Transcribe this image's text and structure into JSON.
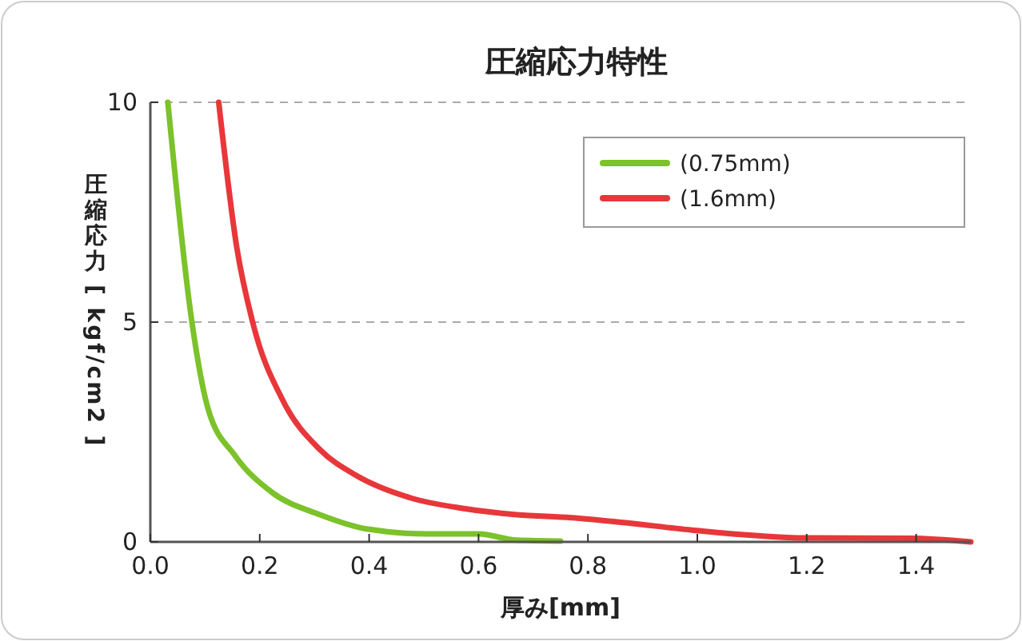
{
  "chart_data": {
    "type": "line",
    "title": "圧縮応力特性",
    "xlabel": "厚み[mm]",
    "ylabel": "圧縮応力 [ kgf/cm2 ]",
    "xlim": [
      0,
      1.5
    ],
    "xticks": [
      {
        "value": 0,
        "label": "0.0"
      },
      {
        "value": 0.2,
        "label": "0.2"
      },
      {
        "value": 0.4,
        "label": "0.4"
      },
      {
        "value": 0.6,
        "label": "0.6"
      },
      {
        "value": 0.8,
        "label": "0.8"
      },
      {
        "value": 1,
        "label": "1.0"
      },
      {
        "value": 1.2,
        "label": "1.2"
      },
      {
        "value": 1.4,
        "label": "1.4"
      }
    ],
    "ylim": [
      0,
      10
    ],
    "yticks": [
      0,
      5,
      10
    ],
    "grid": "y",
    "legend": "top right",
    "series": [
      {
        "name": "(0.75mm)",
        "color": "#7cc22a",
        "x": [
          0.032,
          0.076,
          0.105,
          0.155,
          0.222,
          0.31,
          0.398,
          0.506,
          0.6,
          0.67,
          0.75
        ],
        "values": [
          10,
          5,
          3.05,
          1.96,
          1.13,
          0.62,
          0.29,
          0.18,
          0.18,
          0.04,
          0.02
        ]
      },
      {
        "name": "(1.6mm)",
        "color": "#e8373a",
        "x": [
          0.125,
          0.158,
          0.187,
          0.243,
          0.31,
          0.378,
          0.476,
          0.573,
          0.67,
          0.77,
          0.865,
          0.99,
          1.2,
          1.39,
          1.5
        ],
        "values": [
          10,
          6.7,
          5,
          3.2,
          2.1,
          1.5,
          1.0,
          0.76,
          0.62,
          0.55,
          0.44,
          0.27,
          0.09,
          0.08,
          0
        ]
      }
    ]
  }
}
